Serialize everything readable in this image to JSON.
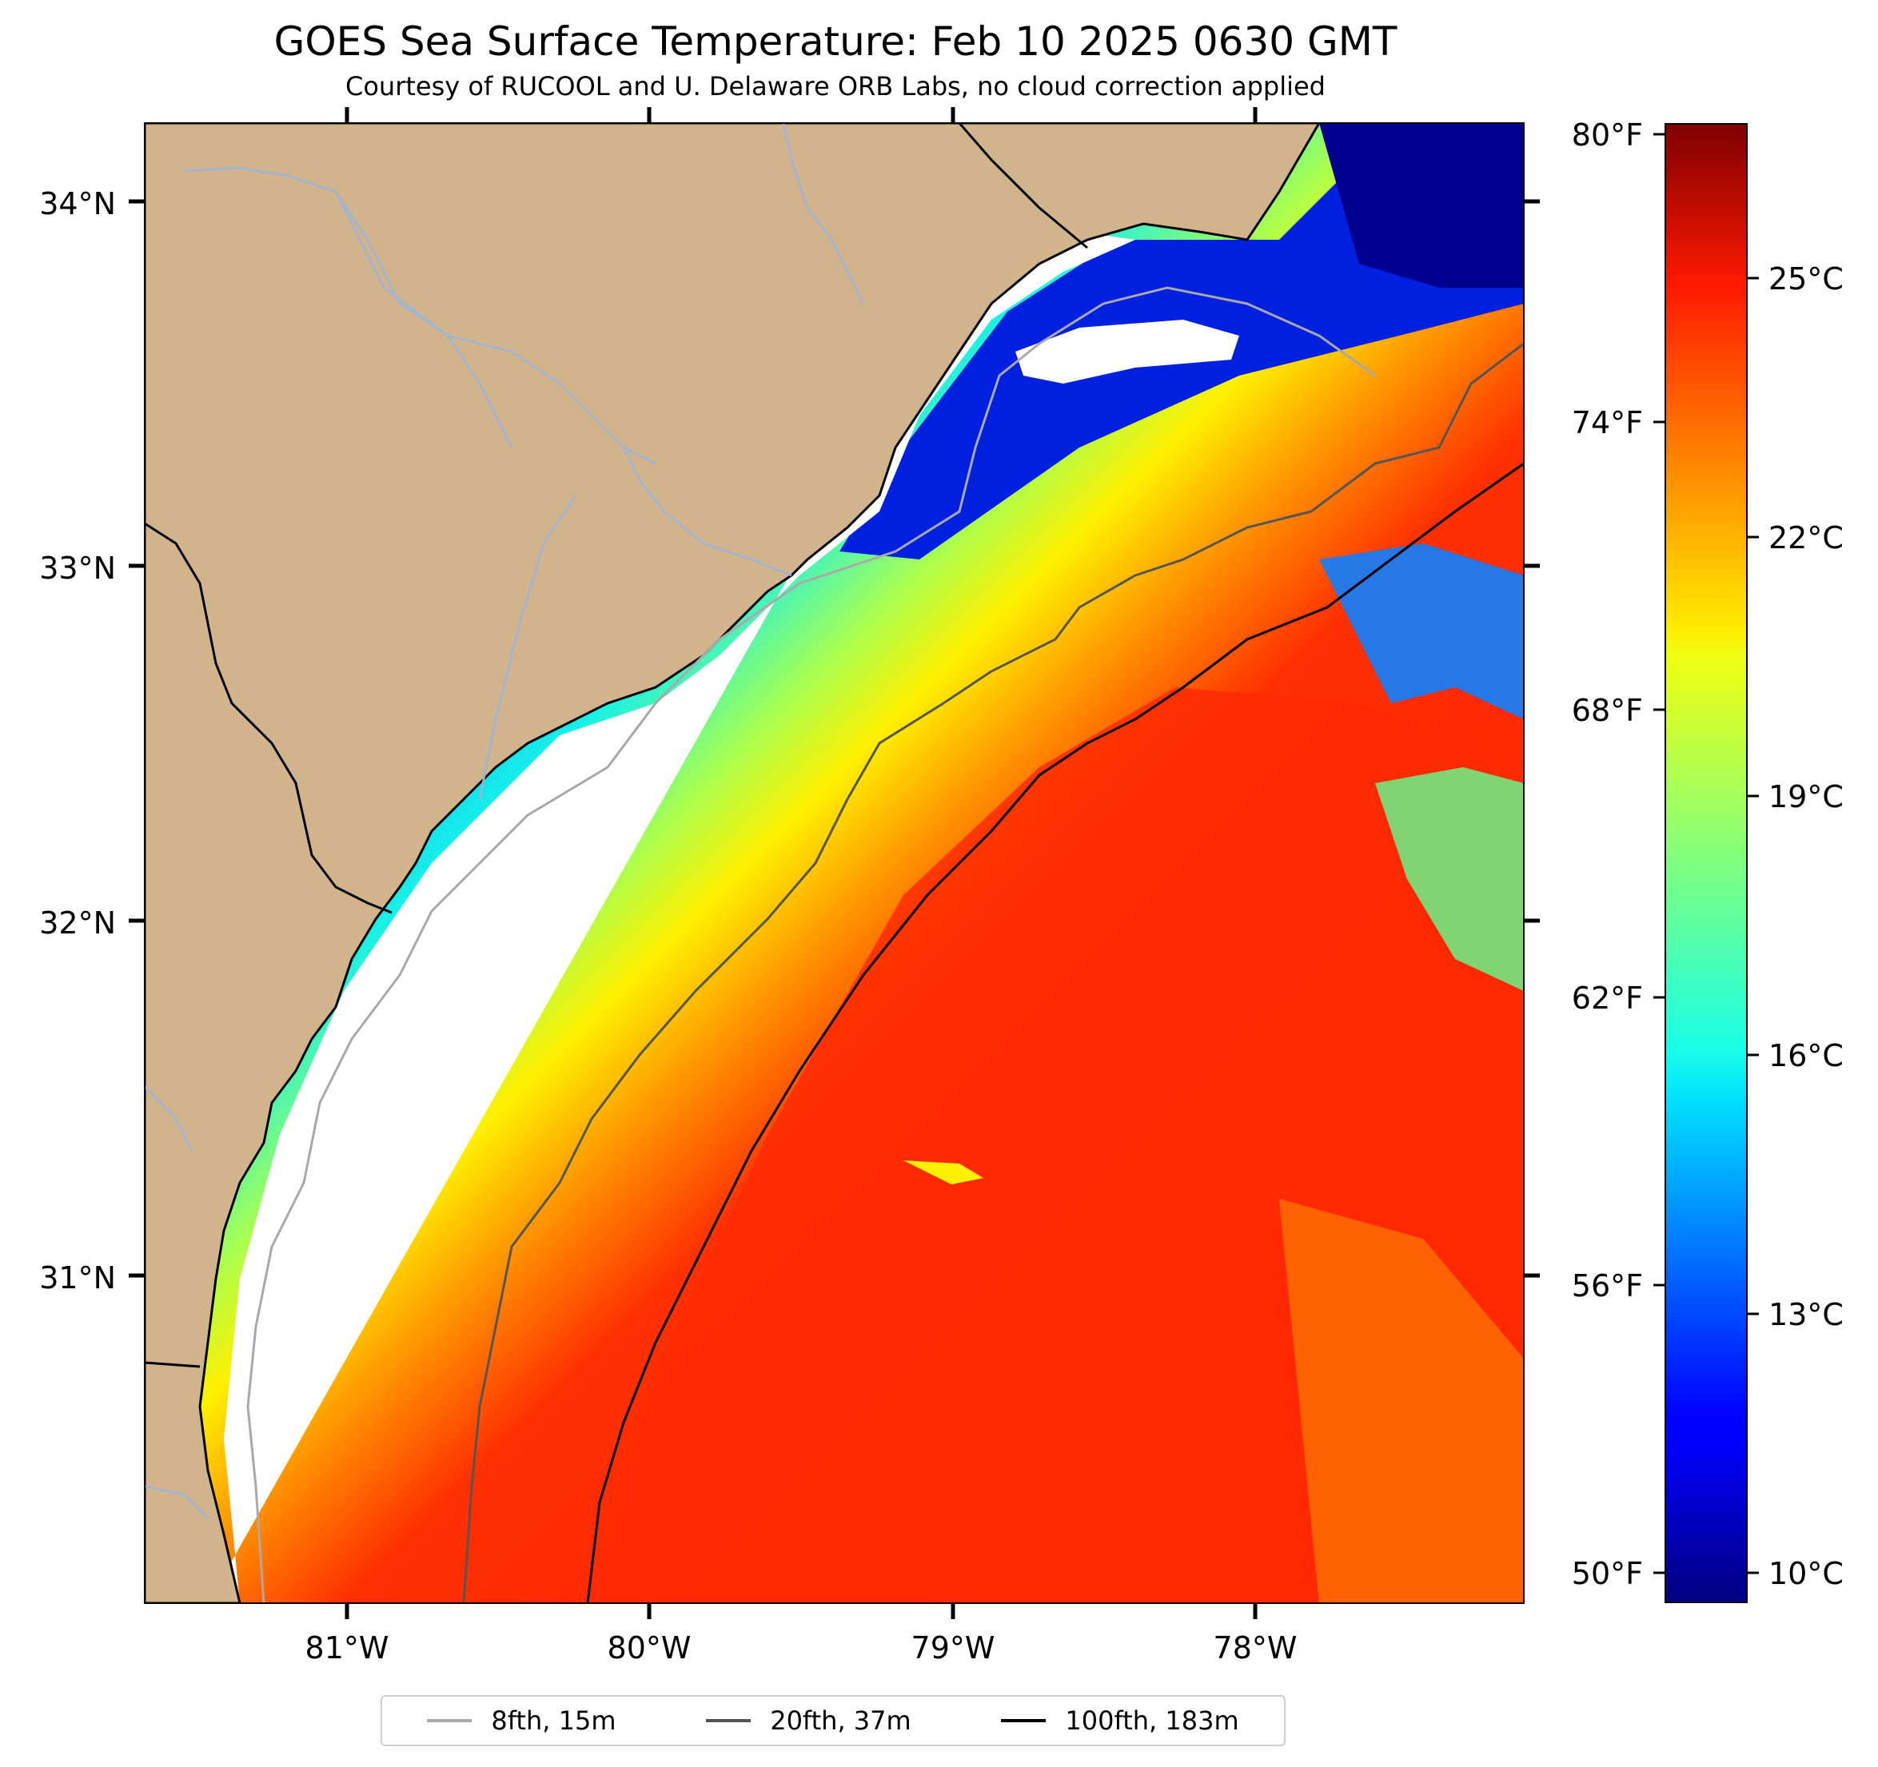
{
  "title": "GOES Sea Surface Temperature: Feb 10 2025 0630 GMT",
  "subtitle": "Courtesy of RUCOOL and U. Delaware ORB Labs, no cloud correction applied",
  "map": {
    "lat_labels": [
      "34°N",
      "33°N",
      "32°N",
      "31°N"
    ],
    "lon_labels": [
      "81°W",
      "80°W",
      "79°W",
      "78°W"
    ],
    "colors": {
      "land": "#d2b48c",
      "coastline": "#000000",
      "rivers": "#9fb4d4",
      "ocean_nodata": "#ffffff"
    }
  },
  "colorbar": {
    "fahrenheit_labels": [
      "80°F",
      "74°F",
      "68°F",
      "62°F",
      "56°F",
      "50°F"
    ],
    "celsius_labels": [
      "25°C",
      "22°C",
      "19°C",
      "16°C",
      "13°C",
      "10°C"
    ],
    "colormap": "jet"
  },
  "legend": {
    "items": [
      {
        "label": "8fth, 15m",
        "color": "#a9a9a9"
      },
      {
        "label": "20fth, 37m",
        "color": "#555555"
      },
      {
        "label": "100fth, 183m",
        "color": "#000000"
      }
    ]
  }
}
